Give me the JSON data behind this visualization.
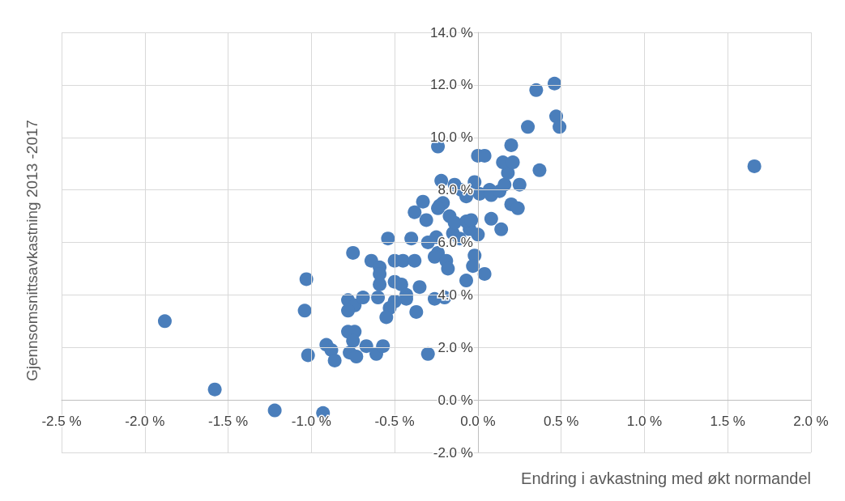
{
  "chart_data": {
    "type": "scatter",
    "xlabel": "Endring i avkastning med økt normandel",
    "ylabel": "Gjennsomsnittsavkastning 2013 -2017",
    "x": [
      -1.88,
      -1.58,
      -1.22,
      -0.93,
      -1.03,
      -1.04,
      -1.02,
      -0.91,
      -0.88,
      -0.86,
      -0.78,
      -0.74,
      -0.75,
      -0.77,
      -0.73,
      -0.67,
      -0.61,
      -0.57,
      -0.78,
      -0.74,
      -0.78,
      -0.69,
      -0.75,
      -0.64,
      -0.59,
      -0.59,
      -0.59,
      -0.6,
      -0.54,
      -0.5,
      -0.45,
      -0.38,
      -0.4,
      -0.5,
      -0.46,
      -0.35,
      -0.43,
      -0.43,
      -0.5,
      -0.53,
      -0.55,
      -0.37,
      -0.3,
      -0.26,
      -0.2,
      -0.24,
      -0.26,
      -0.19,
      -0.18,
      -0.07,
      0.04,
      -0.02,
      -0.03,
      -0.3,
      -0.25,
      -0.15,
      -0.11,
      0.0,
      -0.05,
      0.14,
      0.08,
      -0.31,
      -0.17,
      -0.14,
      -0.07,
      -0.04,
      -0.38,
      -0.33,
      -0.23,
      -0.21,
      -0.24,
      -0.22,
      -0.14,
      -0.02,
      -0.1,
      -0.07,
      0.01,
      0.07,
      0.08,
      0.13,
      0.16,
      0.2,
      0.24,
      0.25,
      0.18,
      0.15,
      0.21,
      0.37,
      0.2,
      0.0,
      0.04,
      -0.24,
      0.3,
      0.47,
      0.49,
      0.35,
      0.46,
      1.66
    ],
    "values": [
      3.0,
      0.4,
      -0.4,
      -0.5,
      4.6,
      3.4,
      1.7,
      2.1,
      1.9,
      1.5,
      2.6,
      2.6,
      2.25,
      1.8,
      1.65,
      2.05,
      1.75,
      2.05,
      3.8,
      3.6,
      3.4,
      3.9,
      5.6,
      5.3,
      5.05,
      4.8,
      4.4,
      3.9,
      6.15,
      5.3,
      5.3,
      5.3,
      6.15,
      4.5,
      4.4,
      4.3,
      4.0,
      3.85,
      3.75,
      3.5,
      3.15,
      3.35,
      1.75,
      3.85,
      3.9,
      5.6,
      5.45,
      5.3,
      5.0,
      4.55,
      4.8,
      5.5,
      5.1,
      6.0,
      6.2,
      6.35,
      6.15,
      6.3,
      6.5,
      6.5,
      6.9,
      6.85,
      7.0,
      6.75,
      6.8,
      6.85,
      7.15,
      7.55,
      7.4,
      7.5,
      7.3,
      8.35,
      8.2,
      8.3,
      8.0,
      7.75,
      7.85,
      8.0,
      7.8,
      7.95,
      8.2,
      7.45,
      7.3,
      8.2,
      8.65,
      9.05,
      9.05,
      8.75,
      9.7,
      9.3,
      9.3,
      9.65,
      10.4,
      10.8,
      10.4,
      11.8,
      12.05,
      8.9
    ],
    "color": "#4a7ebb",
    "marker": "circle",
    "grid": true,
    "xlim": [
      -2.5,
      2.0
    ],
    "xticks": [
      {
        "value": -2.5,
        "label": "-2.5 %"
      },
      {
        "value": -2.0,
        "label": "-2.0 %"
      },
      {
        "value": -1.5,
        "label": "-1.5 %"
      },
      {
        "value": -1.0,
        "label": "-1.0 %"
      },
      {
        "value": -0.5,
        "label": "-0.5 %"
      },
      {
        "value": 0.0,
        "label": "0.0 %"
      },
      {
        "value": 0.5,
        "label": "0.5 %"
      },
      {
        "value": 1.0,
        "label": "1.0 %"
      },
      {
        "value": 1.5,
        "label": "1.5 %"
      },
      {
        "value": 2.0,
        "label": "2.0 %"
      }
    ],
    "ylim": [
      -2.0,
      14.0
    ],
    "yticks": [
      {
        "value": -2.0,
        "label": "-2.0 %"
      },
      {
        "value": 0.0,
        "label": "0.0 %"
      },
      {
        "value": 2.0,
        "label": "2.0 %"
      },
      {
        "value": 4.0,
        "label": "4.0 %"
      },
      {
        "value": 6.0,
        "label": "6.0 %"
      },
      {
        "value": 8.0,
        "label": "8.0 %"
      },
      {
        "value": 10.0,
        "label": "10.0 %"
      },
      {
        "value": 12.0,
        "label": "12.0 %"
      },
      {
        "value": 14.0,
        "label": "14.0 %"
      }
    ]
  }
}
